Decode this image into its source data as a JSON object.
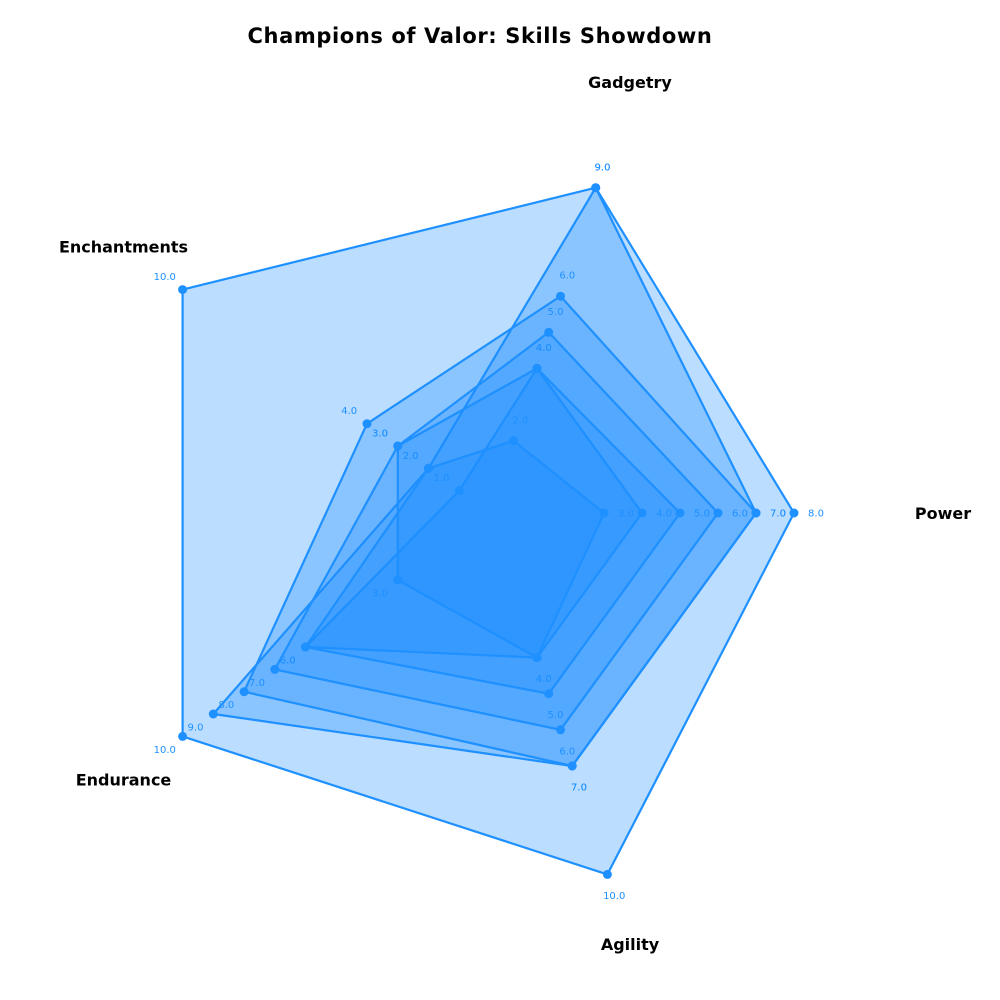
{
  "chart_data": {
    "type": "radar",
    "title": "Champions of Valor: Skills Showdown",
    "axes": [
      "Power",
      "Gadgetry",
      "Enchantments",
      "Endurance",
      "Agility"
    ],
    "series": [
      {
        "values": [
          8,
          9,
          10,
          10,
          10
        ]
      },
      {
        "values": [
          7,
          9,
          2,
          9,
          7
        ]
      },
      {
        "values": [
          7,
          6,
          4,
          8,
          7
        ]
      },
      {
        "values": [
          6,
          5,
          3,
          7,
          6
        ]
      },
      {
        "values": [
          5,
          4,
          1,
          6,
          5
        ]
      },
      {
        "values": [
          4,
          4,
          3,
          3,
          4
        ]
      },
      {
        "values": [
          3,
          2,
          2,
          6,
          4
        ]
      }
    ],
    "value_labels": true,
    "grid": false,
    "colors": {
      "line": "#1E90FF",
      "fill": "#1E90FF",
      "fill_opacity": 0.3,
      "text": "#000000"
    }
  }
}
